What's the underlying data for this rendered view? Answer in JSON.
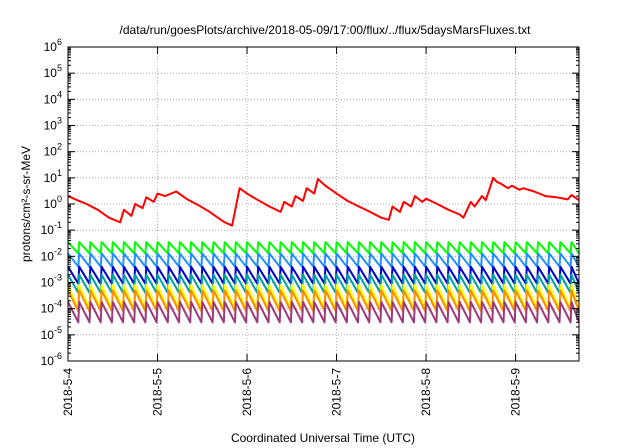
{
  "chart_data": {
    "type": "line",
    "title": "/data/run/goesPlots/archive/2018-05-09/17:00/flux/../flux/5daysMarsFluxes.txt",
    "xlabel": "Coordinated Universal Time (UTC)",
    "ylabel": "protons/cm²-s-sr-MeV",
    "yscale": "log",
    "ylim": [
      1e-06,
      1000000.0
    ],
    "xlim": [
      "2018-05-04T00:00",
      "2018-05-09T17:00"
    ],
    "grid": true,
    "legend": "none",
    "x_ticks": [
      "2018-5-4",
      "2018-5-5",
      "2018-5-6",
      "2018-5-7",
      "2018-5-8",
      "2018-5-9"
    ],
    "y_ticks": [
      {
        "base": "10",
        "exp": "6"
      },
      {
        "base": "10",
        "exp": "5"
      },
      {
        "base": "10",
        "exp": "4"
      },
      {
        "base": "10",
        "exp": "3"
      },
      {
        "base": "10",
        "exp": "2"
      },
      {
        "base": "10",
        "exp": "1"
      },
      {
        "base": "10",
        "exp": "0"
      },
      {
        "base": "10",
        "exp": "-1"
      },
      {
        "base": "10",
        "exp": "-2"
      },
      {
        "base": "10",
        "exp": "-3"
      },
      {
        "base": "10",
        "exp": "-4"
      },
      {
        "base": "10",
        "exp": "-5"
      },
      {
        "base": "10",
        "exp": "-6"
      }
    ],
    "series": [
      {
        "color": "#ff0000",
        "x": [
          "2018-05-04T00:00",
          "2018-05-04T02:00",
          "2018-05-04T05:00",
          "2018-05-04T08:00",
          "2018-05-04T11:00",
          "2018-05-04T14:00",
          "2018-05-04T15:00",
          "2018-05-04T17:00",
          "2018-05-04T18:00",
          "2018-05-04T20:00",
          "2018-05-04T21:00",
          "2018-05-04T23:00",
          "2018-05-05T00:00",
          "2018-05-05T02:00",
          "2018-05-05T05:00",
          "2018-05-05T08:00",
          "2018-05-05T11:00",
          "2018-05-05T14:00",
          "2018-05-05T17:00",
          "2018-05-05T18:00",
          "2018-05-05T20:00",
          "2018-05-05T22:00",
          "2018-05-06T00:00",
          "2018-05-06T03:00",
          "2018-05-06T06:00",
          "2018-05-06T09:00",
          "2018-05-06T10:00",
          "2018-05-06T12:00",
          "2018-05-06T13:00",
          "2018-05-06T15:00",
          "2018-05-06T16:00",
          "2018-05-06T18:00",
          "2018-05-06T19:00",
          "2018-05-06T21:00",
          "2018-05-07T00:00",
          "2018-05-07T03:00",
          "2018-05-07T06:00",
          "2018-05-07T09:00",
          "2018-05-07T12:00",
          "2018-05-07T14:00",
          "2018-05-07T15:00",
          "2018-05-07T17:00",
          "2018-05-07T18:00",
          "2018-05-07T20:00",
          "2018-05-07T21:00",
          "2018-05-07T23:00",
          "2018-05-08T00:00",
          "2018-05-08T03:00",
          "2018-05-08T06:00",
          "2018-05-08T09:00",
          "2018-05-08T10:00",
          "2018-05-08T12:00",
          "2018-05-08T13:00",
          "2018-05-08T15:00",
          "2018-05-08T16:00",
          "2018-05-08T18:00",
          "2018-05-08T19:00",
          "2018-05-08T20:00",
          "2018-05-08T22:00",
          "2018-05-08T23:00",
          "2018-05-09T01:00",
          "2018-05-09T02:00",
          "2018-05-09T05:00",
          "2018-05-09T08:00",
          "2018-05-09T11:00",
          "2018-05-09T14:00",
          "2018-05-09T15:00",
          "2018-05-09T17:00"
        ],
        "y": [
          2,
          1.5,
          1,
          0.6,
          0.3,
          0.2,
          0.6,
          0.35,
          1,
          0.7,
          1.8,
          1.2,
          2.5,
          2,
          3,
          1.5,
          0.9,
          0.5,
          0.25,
          0.2,
          0.15,
          4,
          2.5,
          1.4,
          0.8,
          0.5,
          1.2,
          0.8,
          2,
          1.3,
          4,
          2.5,
          9,
          5,
          2.5,
          1.3,
          0.8,
          0.5,
          0.3,
          0.25,
          0.8,
          0.5,
          1.2,
          0.8,
          2,
          1.2,
          1.6,
          1,
          0.6,
          0.4,
          0.3,
          1.2,
          0.8,
          2,
          1.4,
          10,
          7,
          6,
          4,
          5,
          3.5,
          4,
          3,
          2,
          1.8,
          1.5,
          2.2,
          1.4
        ]
      },
      {
        "color": "#00ff00",
        "x": [
          "2018-05-04T00:00",
          "2018-05-09T17:00"
        ],
        "y": [
          0.025,
          0.025
        ],
        "sawtooth_peak": 0.035,
        "sawtooth_trough": 0.013,
        "sawtooth_period_hours": 3
      },
      {
        "color": "#1e90ff",
        "x": [
          "2018-05-04T00:00",
          "2018-05-09T17:00"
        ],
        "y": [
          0.009,
          0.009
        ],
        "sawtooth_peak": 0.013,
        "sawtooth_trough": 0.004,
        "sawtooth_period_hours": 3
      },
      {
        "color": "#0000cd",
        "x": [
          "2018-05-04T00:00",
          "2018-05-09T17:00"
        ],
        "y": [
          0.0025,
          0.0025
        ],
        "sawtooth_peak": 0.004,
        "sawtooth_trough": 0.0009,
        "sawtooth_period_hours": 3
      },
      {
        "color": "#00a0a0",
        "x": [
          "2018-05-04T00:00",
          "2018-05-09T17:00"
        ],
        "y": [
          0.0012,
          0.0012
        ],
        "sawtooth_peak": 0.002,
        "sawtooth_trough": 0.0004,
        "sawtooth_period_hours": 3
      },
      {
        "color": "#ffff00",
        "x": [
          "2018-05-04T00:00",
          "2018-05-09T17:00"
        ],
        "y": [
          0.0005,
          0.0005
        ],
        "sawtooth_peak": 0.0008,
        "sawtooth_trough": 0.0001,
        "sawtooth_period_hours": 3
      },
      {
        "color": "#ff8c00",
        "x": [
          "2018-05-04T00:00",
          "2018-05-09T17:00"
        ],
        "y": [
          0.0003,
          0.0003
        ],
        "sawtooth_peak": 0.0005,
        "sawtooth_trough": 8e-05,
        "sawtooth_period_hours": 3
      },
      {
        "color": "#9b3b7b",
        "x": [
          "2018-05-04T00:00",
          "2018-05-09T17:00"
        ],
        "y": [
          0.0001,
          0.0001
        ],
        "sawtooth_peak": 0.00018,
        "sawtooth_trough": 3e-05,
        "sawtooth_period_hours": 3
      }
    ]
  }
}
